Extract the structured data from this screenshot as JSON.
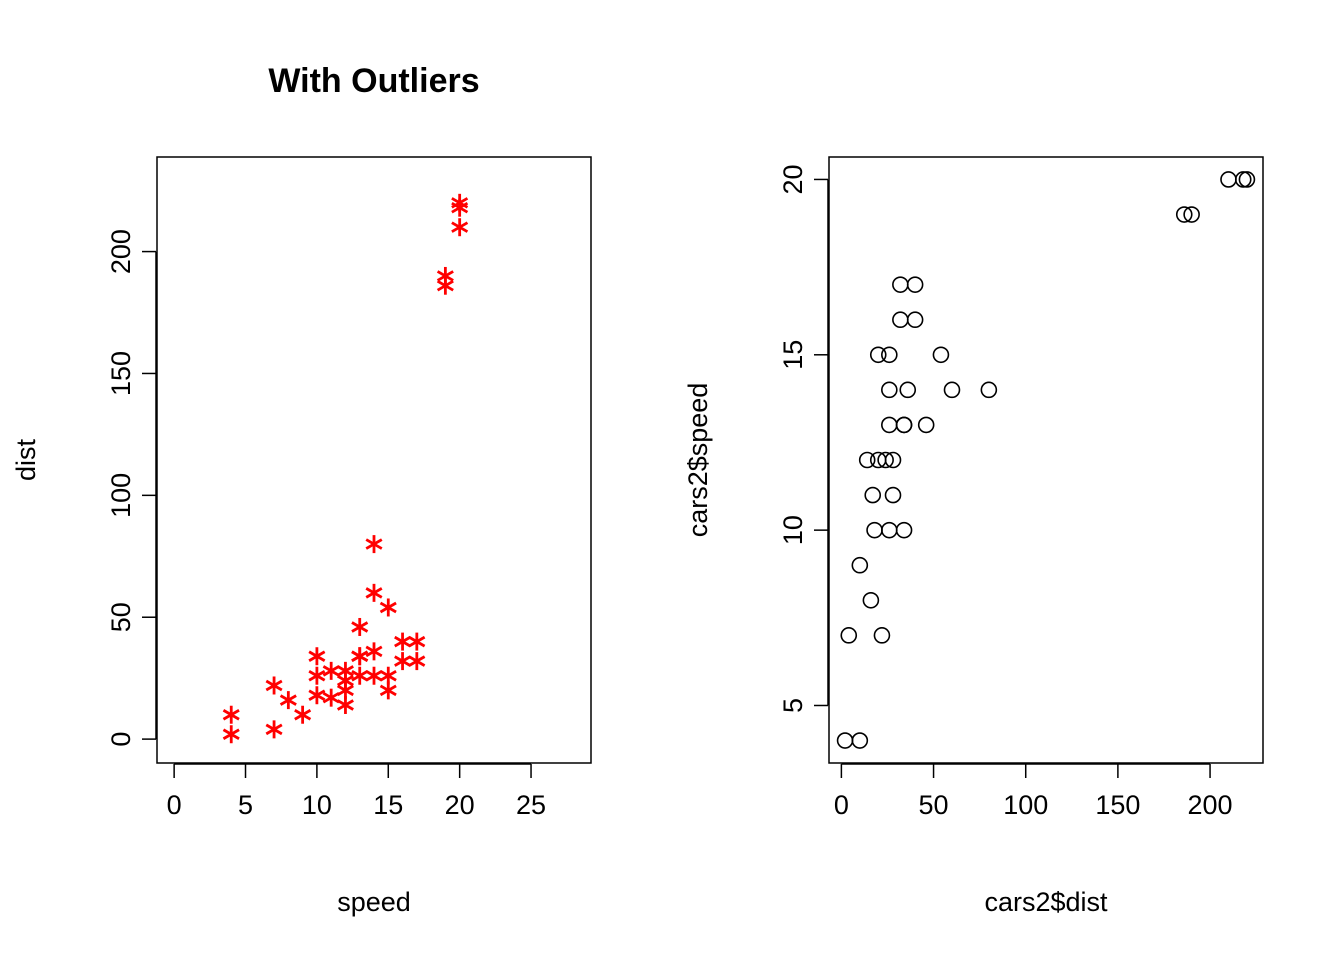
{
  "chart_data": [
    {
      "type": "scatter",
      "title": "With Outliers",
      "xlabel": "speed",
      "ylabel": "dist",
      "xlim": [
        -1.2,
        29.2
      ],
      "ylim": [
        -9.8,
        238.8
      ],
      "xticks": [
        0,
        5,
        10,
        15,
        20,
        25
      ],
      "yticks": [
        0,
        50,
        100,
        150,
        200
      ],
      "marker": "asterisk",
      "color": "#ff0000",
      "points": [
        [
          4,
          2
        ],
        [
          4,
          10
        ],
        [
          7,
          4
        ],
        [
          7,
          22
        ],
        [
          8,
          16
        ],
        [
          9,
          10
        ],
        [
          10,
          18
        ],
        [
          10,
          26
        ],
        [
          10,
          34
        ],
        [
          11,
          17
        ],
        [
          11,
          28
        ],
        [
          12,
          14
        ],
        [
          12,
          20
        ],
        [
          12,
          24
        ],
        [
          12,
          28
        ],
        [
          13,
          26
        ],
        [
          13,
          34
        ],
        [
          13,
          34
        ],
        [
          13,
          46
        ],
        [
          14,
          26
        ],
        [
          14,
          36
        ],
        [
          14,
          60
        ],
        [
          14,
          80
        ],
        [
          15,
          20
        ],
        [
          15,
          26
        ],
        [
          15,
          54
        ],
        [
          16,
          32
        ],
        [
          16,
          40
        ],
        [
          17,
          32
        ],
        [
          17,
          40
        ],
        [
          19,
          186
        ],
        [
          19,
          190
        ],
        [
          20,
          210
        ],
        [
          20,
          218
        ],
        [
          20,
          220
        ]
      ]
    },
    {
      "type": "scatter",
      "title": "",
      "xlabel": "cars2$dist",
      "ylabel": "cars2$speed",
      "xlim": [
        -6.72,
        228.72
      ],
      "ylim": [
        3.36,
        20.64
      ],
      "xticks": [
        0,
        50,
        100,
        150,
        200
      ],
      "yticks": [
        5,
        10,
        15,
        20
      ],
      "marker": "open-circle",
      "color": "#000000",
      "points": [
        [
          2,
          4
        ],
        [
          10,
          4
        ],
        [
          4,
          7
        ],
        [
          22,
          7
        ],
        [
          16,
          8
        ],
        [
          10,
          9
        ],
        [
          18,
          10
        ],
        [
          26,
          10
        ],
        [
          34,
          10
        ],
        [
          17,
          11
        ],
        [
          28,
          11
        ],
        [
          14,
          12
        ],
        [
          20,
          12
        ],
        [
          24,
          12
        ],
        [
          28,
          12
        ],
        [
          26,
          13
        ],
        [
          34,
          13
        ],
        [
          34,
          13
        ],
        [
          46,
          13
        ],
        [
          26,
          14
        ],
        [
          36,
          14
        ],
        [
          60,
          14
        ],
        [
          80,
          14
        ],
        [
          20,
          15
        ],
        [
          26,
          15
        ],
        [
          54,
          15
        ],
        [
          32,
          16
        ],
        [
          40,
          16
        ],
        [
          32,
          17
        ],
        [
          40,
          17
        ],
        [
          186,
          19
        ],
        [
          190,
          19
        ],
        [
          210,
          20
        ],
        [
          218,
          20
        ],
        [
          220,
          20
        ]
      ]
    }
  ]
}
